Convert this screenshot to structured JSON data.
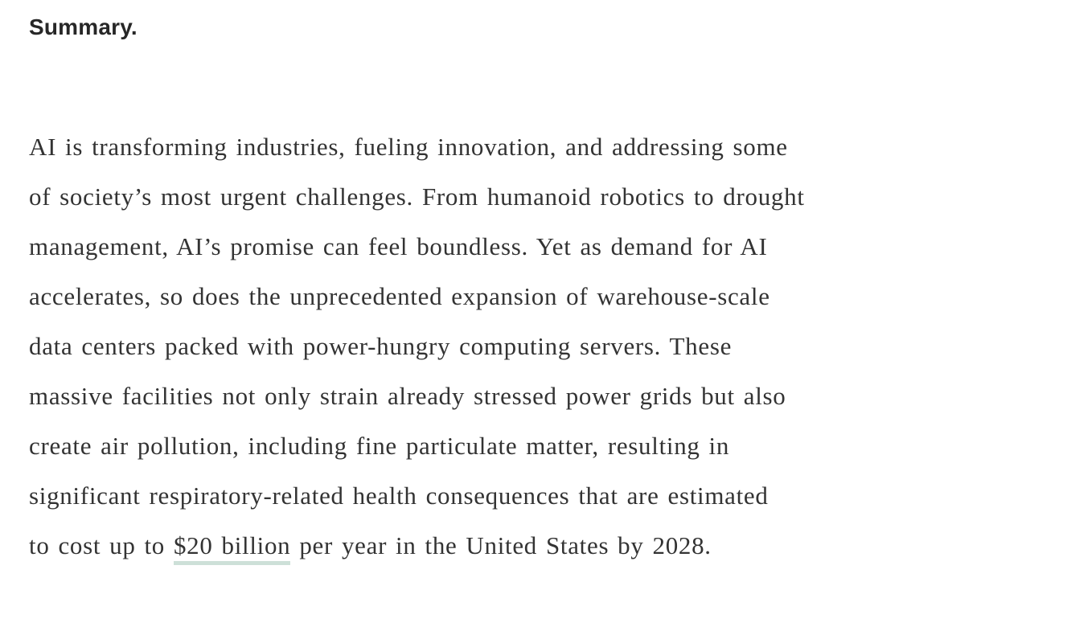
{
  "heading": {
    "text": "Summary."
  },
  "paragraph": {
    "lines": [
      "AI is transforming industries, fueling innovation, and addressing some",
      "of society’s most urgent challenges. From humanoid robotics to drought",
      "management, AI’s promise can feel boundless. Yet as demand for AI",
      "accelerates, so does the unprecedented expansion of warehouse-scale",
      "data centers packed with power-hungry computing servers. These",
      "massive facilities not only strain already stressed power grids but also",
      "create air pollution, including fine particulate matter, resulting in",
      "significant respiratory-related health consequences that are estimated"
    ],
    "last_line": {
      "pre": "to cost up to ",
      "link": "$20 billion",
      "post": " per year in the United States by 2028."
    }
  },
  "colors": {
    "background": "#ffffff",
    "heading_text": "#272727",
    "body_text": "#333333",
    "link_underline": "#cde0d8"
  }
}
